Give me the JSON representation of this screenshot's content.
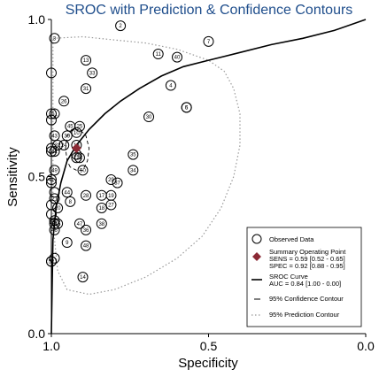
{
  "chart_data": {
    "type": "scatter",
    "title": "SROC with Prediction & Confidence Contours",
    "xlabel": "Specificity",
    "ylabel": "Sensitivity",
    "x_reversed": true,
    "xlim": [
      1.0,
      0.0
    ],
    "ylim": [
      0.0,
      1.0
    ],
    "x_ticks": [
      "1.0",
      "0.5",
      "0.0"
    ],
    "y_ticks": [
      "0.0",
      "0.5",
      "1.0"
    ],
    "colors": {
      "summary": "#8b2a35",
      "axis": "#000000",
      "title": "#1f4e8c",
      "prediction": "#999999"
    },
    "studies": [
      {
        "label": "2",
        "spec": 0.78,
        "sens": 0.98
      },
      {
        "label": "3",
        "spec": 0.99,
        "sens": 0.94
      },
      {
        "label": "4",
        "spec": 0.62,
        "sens": 0.79
      },
      {
        "label": "5",
        "spec": 0.57,
        "sens": 0.72
      },
      {
        "label": "6",
        "spec": 0.57,
        "sens": 0.72
      },
      {
        "label": "7",
        "spec": 0.5,
        "sens": 0.93
      },
      {
        "label": "8",
        "spec": 0.94,
        "sens": 0.42
      },
      {
        "label": "9",
        "spec": 0.95,
        "sens": 0.29
      },
      {
        "label": "10",
        "spec": 0.92,
        "sens": 0.64
      },
      {
        "label": "11",
        "spec": 0.66,
        "sens": 0.89
      },
      {
        "label": "12",
        "spec": 0.92,
        "sens": 0.56
      },
      {
        "label": "13",
        "spec": 0.89,
        "sens": 0.87
      },
      {
        "label": "14",
        "spec": 0.9,
        "sens": 0.18
      },
      {
        "label": "15",
        "spec": 0.98,
        "sens": 0.35
      },
      {
        "label": "16",
        "spec": 0.92,
        "sens": 0.6
      },
      {
        "label": "17",
        "spec": 0.84,
        "sens": 0.44
      },
      {
        "label": "18",
        "spec": 0.84,
        "sens": 0.4
      },
      {
        "label": "19",
        "spec": 0.81,
        "sens": 0.44
      },
      {
        "label": "20",
        "spec": 0.98,
        "sens": 0.4
      },
      {
        "label": "21",
        "spec": 0.99,
        "sens": 0.43
      },
      {
        "label": "22",
        "spec": 0.91,
        "sens": 0.56
      },
      {
        "label": "23",
        "spec": 0.92,
        "sens": 0.57
      },
      {
        "label": "24",
        "spec": 0.96,
        "sens": 0.6
      },
      {
        "label": "25",
        "spec": 0.91,
        "sens": 0.66
      },
      {
        "label": "26",
        "spec": 0.96,
        "sens": 0.74
      },
      {
        "label": "27",
        "spec": 0.81,
        "sens": 0.41
      },
      {
        "label": "28",
        "spec": 0.89,
        "sens": 0.44
      },
      {
        "label": "29",
        "spec": 0.81,
        "sens": 0.49
      },
      {
        "label": "30",
        "spec": 0.69,
        "sens": 0.69
      },
      {
        "label": "31",
        "spec": 0.89,
        "sens": 0.78
      },
      {
        "label": "32",
        "spec": 0.98,
        "sens": 0.6
      },
      {
        "label": "33",
        "spec": 0.87,
        "sens": 0.83
      },
      {
        "label": "34",
        "spec": 0.74,
        "sens": 0.52
      },
      {
        "label": "35",
        "spec": 0.74,
        "sens": 0.57
      },
      {
        "label": "36",
        "spec": 0.89,
        "sens": 0.33
      },
      {
        "label": "37",
        "spec": 0.79,
        "sens": 0.48
      },
      {
        "label": "38",
        "spec": 0.84,
        "sens": 0.35
      },
      {
        "label": "39",
        "spec": 0.95,
        "sens": 0.63
      },
      {
        "label": "40",
        "spec": 0.6,
        "sens": 0.88
      },
      {
        "label": "41",
        "spec": 1.0,
        "sens": 0.49
      },
      {
        "label": "42",
        "spec": 0.99,
        "sens": 0.58
      },
      {
        "label": "43",
        "spec": 0.99,
        "sens": 0.63
      },
      {
        "label": "44",
        "spec": 0.95,
        "sens": 0.45
      },
      {
        "label": "45",
        "spec": 0.94,
        "sens": 0.66
      },
      {
        "label": "46",
        "spec": 0.99,
        "sens": 0.33
      },
      {
        "label": "47",
        "spec": 0.91,
        "sens": 0.35
      },
      {
        "label": "48",
        "spec": 0.89,
        "sens": 0.28
      },
      {
        "label": "49",
        "spec": 0.99,
        "sens": 0.52
      },
      {
        "label": "50",
        "spec": 0.9,
        "sens": 0.52
      },
      {
        "label": "51",
        "spec": 0.99,
        "sens": 0.7
      },
      {
        "label": "52",
        "spec": 1.0,
        "sens": 0.23
      },
      {
        "label": "53",
        "spec": 0.99,
        "sens": 0.36
      },
      {
        "label": "54",
        "spec": 0.99,
        "sens": 0.35
      }
    ],
    "unlabeled_points": [
      {
        "spec": 1.0,
        "sens": 0.83
      },
      {
        "spec": 1.0,
        "sens": 0.7
      },
      {
        "spec": 1.0,
        "sens": 0.68
      },
      {
        "spec": 1.0,
        "sens": 0.59
      },
      {
        "spec": 1.0,
        "sens": 0.58
      },
      {
        "spec": 1.0,
        "sens": 0.48
      },
      {
        "spec": 1.0,
        "sens": 0.41
      },
      {
        "spec": 1.0,
        "sens": 0.38
      },
      {
        "spec": 1.0,
        "sens": 0.23
      },
      {
        "spec": 0.99,
        "sens": 0.24
      },
      {
        "spec": 0.99,
        "sens": 0.45
      }
    ],
    "summary_point": {
      "spec": 0.92,
      "sens": 0.59
    },
    "sroc_curve": [
      [
        1.0,
        0.0
      ],
      [
        0.995,
        0.3
      ],
      [
        0.985,
        0.4
      ],
      [
        0.97,
        0.48
      ],
      [
        0.95,
        0.55
      ],
      [
        0.92,
        0.6
      ],
      [
        0.88,
        0.65
      ],
      [
        0.83,
        0.7
      ],
      [
        0.78,
        0.74
      ],
      [
        0.72,
        0.78
      ],
      [
        0.65,
        0.82
      ],
      [
        0.58,
        0.85
      ],
      [
        0.5,
        0.87
      ],
      [
        0.4,
        0.895
      ],
      [
        0.3,
        0.92
      ],
      [
        0.2,
        0.94
      ],
      [
        0.1,
        0.965
      ],
      [
        0.0,
        1.0
      ]
    ],
    "confidence_contour": [
      [
        0.94,
        0.53
      ],
      [
        0.95,
        0.55
      ],
      [
        0.955,
        0.59
      ],
      [
        0.95,
        0.63
      ],
      [
        0.935,
        0.65
      ],
      [
        0.91,
        0.65
      ],
      [
        0.89,
        0.63
      ],
      [
        0.88,
        0.59
      ],
      [
        0.885,
        0.55
      ],
      [
        0.9,
        0.52
      ],
      [
        0.92,
        0.52
      ]
    ],
    "prediction_contour": [
      [
        0.995,
        0.94
      ],
      [
        0.9,
        0.945
      ],
      [
        0.8,
        0.935
      ],
      [
        0.7,
        0.925
      ],
      [
        0.6,
        0.905
      ],
      [
        0.5,
        0.87
      ],
      [
        0.45,
        0.835
      ],
      [
        0.42,
        0.78
      ],
      [
        0.4,
        0.7
      ],
      [
        0.4,
        0.6
      ],
      [
        0.42,
        0.5
      ],
      [
        0.46,
        0.4
      ],
      [
        0.52,
        0.31
      ],
      [
        0.6,
        0.24
      ],
      [
        0.7,
        0.18
      ],
      [
        0.8,
        0.14
      ],
      [
        0.88,
        0.125
      ],
      [
        0.95,
        0.14
      ],
      [
        0.98,
        0.2
      ],
      [
        0.995,
        0.35
      ],
      [
        0.995,
        0.6
      ],
      [
        0.995,
        0.8
      ]
    ],
    "legend": {
      "placement": "bottom-right",
      "observed": "Observed Data",
      "summary_title": "Summary Operating Point",
      "summary_sens": "SENS = 0.59 [0.52 - 0.65]",
      "summary_spec": "SPEC = 0.92 [0.88 - 0.95]",
      "sroc_title": "SROC Curve",
      "sroc_auc": "AUC = 0.84 [1.00 - 0.00]",
      "confidence": "95% Confidence Contour",
      "prediction": "95% Prediction Contour"
    }
  }
}
